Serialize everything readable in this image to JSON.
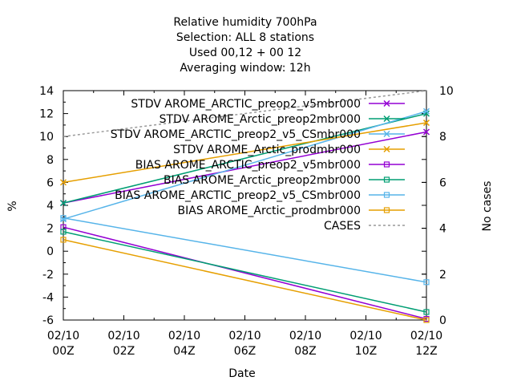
{
  "chart_data": {
    "type": "line",
    "title_lines": [
      "Relative humidity 700hPa",
      "Selection: ALL      8 stations",
      "Used  00,12  + 00 12",
      "Averaging window: 12h"
    ],
    "xlabel": "Date",
    "ylabel": "%",
    "y2label": "No cases",
    "x_ticks": [
      {
        "x": 0,
        "top": "02/10",
        "bottom": "00Z"
      },
      {
        "x": 2,
        "top": "02/10",
        "bottom": "02Z"
      },
      {
        "x": 4,
        "top": "02/10",
        "bottom": "04Z"
      },
      {
        "x": 6,
        "top": "02/10",
        "bottom": "06Z"
      },
      {
        "x": 8,
        "top": "02/10",
        "bottom": "08Z"
      },
      {
        "x": 10,
        "top": "02/10",
        "bottom": "10Z"
      },
      {
        "x": 12,
        "top": "02/10",
        "bottom": "12Z"
      }
    ],
    "xlim": [
      0,
      12
    ],
    "ylim": [
      -6,
      14
    ],
    "y2lim": [
      0,
      10
    ],
    "y_ticks": [
      "-6",
      "-4",
      "-2",
      "0",
      "2",
      "4",
      "6",
      "8",
      "10",
      "12",
      "14"
    ],
    "y2_ticks": [
      "0",
      "2",
      "4",
      "6",
      "8",
      "10"
    ],
    "legend_position": "top-right",
    "series": [
      {
        "name": "STDV AROME_ARCTIC_preop2_v5mbr000",
        "color": "#9400d3",
        "marker": "x",
        "axis": "y",
        "x": [
          0,
          12
        ],
        "y": [
          4.2,
          10.4
        ]
      },
      {
        "name": "STDV AROME_Arctic_preop2mbr000",
        "color": "#009e73",
        "marker": "x",
        "axis": "y",
        "x": [
          0,
          12
        ],
        "y": [
          4.2,
          12.0
        ]
      },
      {
        "name": "STDV AROME_ARCTIC_preop2_v5_CSmbr000",
        "color": "#56b4e9",
        "marker": "x",
        "axis": "y",
        "x": [
          0,
          12
        ],
        "y": [
          2.8,
          12.2
        ]
      },
      {
        "name": "STDV AROME_Arctic_prodmbr000",
        "color": "#e69f00",
        "marker": "x",
        "axis": "y",
        "x": [
          0,
          12
        ],
        "y": [
          6.0,
          11.2
        ]
      },
      {
        "name": "BIAS AROME_ARCTIC_preop2_v5mbr000",
        "color": "#9400d3",
        "marker": "square",
        "axis": "y",
        "x": [
          0,
          12
        ],
        "y": [
          2.1,
          -5.9
        ]
      },
      {
        "name": "BIAS AROME_Arctic_preop2mbr000",
        "color": "#009e73",
        "marker": "square",
        "axis": "y",
        "x": [
          0,
          12
        ],
        "y": [
          1.7,
          -5.3
        ]
      },
      {
        "name": "BIAS AROME_ARCTIC_preop2_v5_CSmbr000",
        "color": "#56b4e9",
        "marker": "square",
        "axis": "y",
        "x": [
          0,
          12
        ],
        "y": [
          2.9,
          -2.7
        ]
      },
      {
        "name": "BIAS AROME_Arctic_prodmbr000",
        "color": "#e69f00",
        "marker": "square",
        "axis": "y",
        "x": [
          0,
          12
        ],
        "y": [
          1.0,
          -6.0
        ]
      },
      {
        "name": "CASES",
        "color": "#999999",
        "marker": "none",
        "dashed": true,
        "axis": "y2",
        "x": [
          0,
          12
        ],
        "y": [
          8,
          10
        ]
      }
    ]
  }
}
